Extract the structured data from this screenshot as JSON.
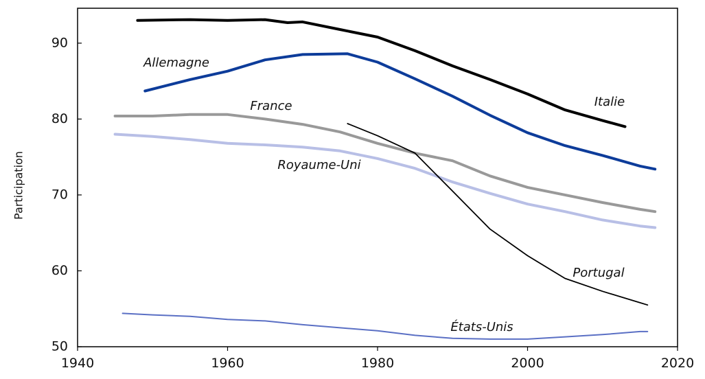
{
  "chart_data": {
    "type": "line",
    "y_label": "Participation",
    "xlim": [
      1940,
      2020
    ],
    "ylim": [
      50,
      94.6
    ],
    "xticks": [
      1940,
      1960,
      1980,
      2000,
      2020
    ],
    "yticks": [
      50,
      60,
      70,
      80,
      90
    ],
    "series": [
      {
        "name": "Italie",
        "color": "#000000",
        "line_width": 4,
        "x": [
          1948,
          1955,
          1960,
          1965,
          1968,
          1970,
          1975,
          1980,
          1985,
          1990,
          1995,
          2000,
          2005,
          2010,
          2013
        ],
        "values": [
          93,
          93.1,
          93,
          93.1,
          92.7,
          92.8,
          91.8,
          90.8,
          89,
          87,
          85.2,
          83.3,
          81.2,
          79.8,
          79
        ]
      },
      {
        "name": "Allemagne",
        "color": "#0d3c9a",
        "line_width": 4,
        "x": [
          1949,
          1955,
          1960,
          1965,
          1970,
          1976,
          1980,
          1985,
          1990,
          1995,
          2000,
          2005,
          2010,
          2015,
          2017
        ],
        "values": [
          83.7,
          85.2,
          86.3,
          87.8,
          88.5,
          88.6,
          87.5,
          85.3,
          83,
          80.5,
          78.2,
          76.5,
          75.2,
          73.8,
          73.4
        ]
      },
      {
        "name": "France",
        "color": "#999999",
        "line_width": 4,
        "x": [
          1945,
          1950,
          1955,
          1960,
          1965,
          1970,
          1975,
          1980,
          1985,
          1990,
          1995,
          2000,
          2005,
          2010,
          2015,
          2017
        ],
        "values": [
          80.4,
          80.4,
          80.6,
          80.6,
          80,
          79.3,
          78.3,
          76.8,
          75.5,
          74.5,
          72.5,
          71,
          70,
          69,
          68.1,
          67.8
        ]
      },
      {
        "name": "Royaume-Uni",
        "color": "#b8bfe6",
        "line_width": 4,
        "x": [
          1945,
          1950,
          1955,
          1960,
          1965,
          1970,
          1975,
          1980,
          1985,
          1990,
          1995,
          2000,
          2005,
          2010,
          2015,
          2017
        ],
        "values": [
          78,
          77.7,
          77.3,
          76.8,
          76.6,
          76.3,
          75.8,
          74.8,
          73.5,
          71.7,
          70.2,
          68.8,
          67.8,
          66.7,
          65.9,
          65.7
        ]
      },
      {
        "name": "Portugal",
        "color": "#000000",
        "line_width": 1.8,
        "x": [
          1976,
          1980,
          1985,
          1990,
          1995,
          2000,
          2005,
          2010,
          2015,
          2016
        ],
        "values": [
          79.4,
          77.8,
          75.5,
          70.5,
          65.5,
          62,
          59,
          57.3,
          55.8,
          55.5
        ]
      },
      {
        "name": "États-Unis",
        "color": "#5a6fc4",
        "line_width": 2,
        "x": [
          1946,
          1950,
          1955,
          1960,
          1965,
          1970,
          1975,
          1980,
          1985,
          1990,
          1995,
          2000,
          2005,
          2010,
          2015,
          2016
        ],
        "values": [
          54.4,
          54.2,
          54,
          53.6,
          53.4,
          52.9,
          52.5,
          52.1,
          51.5,
          51.1,
          51,
          51,
          51.3,
          51.6,
          52,
          52
        ]
      }
    ]
  }
}
